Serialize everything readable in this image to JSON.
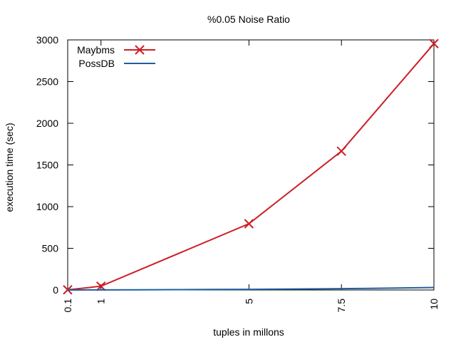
{
  "chart_data": {
    "type": "line",
    "title": "%0.05 Noise Ratio",
    "xlabel": "tuples in millons",
    "ylabel": "execution time (sec)",
    "x_ticks": [
      "0.1",
      "1",
      "5",
      "7.5",
      "10"
    ],
    "y_ticks": [
      "0",
      "500",
      "1000",
      "1500",
      "2000",
      "2500",
      "3000"
    ],
    "xlim": [
      0.1,
      10
    ],
    "ylim": [
      0,
      3000
    ],
    "grid": false,
    "legend_position": "top-left",
    "series": [
      {
        "name": "Maybms",
        "color": "#cc1f27",
        "marker": "x",
        "x": [
          0.1,
          1,
          5,
          7.5,
          10
        ],
        "y": [
          2,
          45,
          795,
          1665,
          2955
        ]
      },
      {
        "name": "PossDB",
        "color": "#1f5f9f",
        "marker": "none",
        "x": [
          0.1,
          1,
          2,
          3,
          4,
          5,
          6,
          7,
          8,
          9,
          10
        ],
        "y": [
          0,
          1,
          2,
          4,
          6,
          8,
          10,
          14,
          18,
          24,
          30
        ]
      }
    ]
  }
}
